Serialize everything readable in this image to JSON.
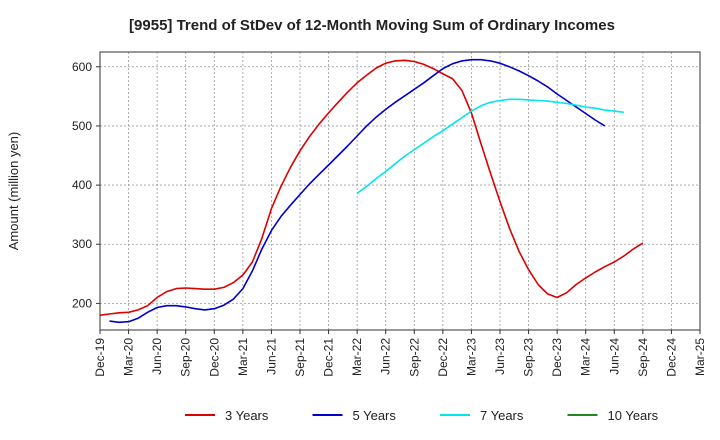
{
  "chart_data": {
    "type": "line",
    "title": "[9955]  Trend of StDev of 12-Month Moving Sum of Ordinary Incomes",
    "xlabel": "",
    "ylabel": "Amount (million yen)",
    "ylim": [
      155,
      625
    ],
    "yticks": [
      200,
      300,
      400,
      500,
      600
    ],
    "x_tick_labels": [
      "Dec-19",
      "Mar-20",
      "Jun-20",
      "Sep-20",
      "Dec-20",
      "Mar-21",
      "Jun-21",
      "Sep-21",
      "Dec-21",
      "Mar-22",
      "Jun-22",
      "Sep-22",
      "Dec-22",
      "Mar-23",
      "Jun-23",
      "Sep-23",
      "Dec-23",
      "Mar-24",
      "Jun-24",
      "Sep-24",
      "Dec-24",
      "Mar-25"
    ],
    "x_start": "Dec-19",
    "series": [
      {
        "name": "3 Years",
        "color": "#dd0000",
        "start_index": 0,
        "values": [
          180,
          182,
          184,
          185,
          189,
          196,
          210,
          220,
          225,
          226,
          225,
          224,
          224,
          227,
          235,
          248,
          270,
          310,
          360,
          398,
          430,
          458,
          482,
          503,
          522,
          540,
          557,
          573,
          586,
          598,
          606,
          610,
          611,
          609,
          604,
          597,
          588,
          580,
          560,
          522,
          470,
          420,
          372,
          327,
          288,
          257,
          232,
          216,
          210,
          218,
          232,
          243,
          253,
          262,
          270,
          280,
          292,
          302
        ]
      },
      {
        "name": "5 Years",
        "color": "#0000cc",
        "start_index": 1,
        "values": [
          170,
          168,
          169,
          175,
          185,
          193,
          196,
          196,
          194,
          191,
          189,
          191,
          197,
          207,
          225,
          255,
          292,
          323,
          347,
          366,
          384,
          402,
          418,
          434,
          450,
          466,
          483,
          500,
          515,
          528,
          540,
          551,
          562,
          573,
          585,
          597,
          605,
          610,
          612,
          612,
          610,
          606,
          600,
          593,
          585,
          576,
          566,
          554,
          543,
          532,
          521,
          510,
          500
        ]
      },
      {
        "name": "7 Years",
        "color": "#00e5ee",
        "start_index": 27,
        "values": [
          386,
          398,
          411,
          423,
          436,
          449,
          460,
          471,
          482,
          492,
          503,
          514,
          525,
          534,
          540,
          543,
          545,
          545,
          544,
          543,
          542,
          540,
          538,
          535,
          532,
          530,
          527,
          525,
          523
        ]
      },
      {
        "name": "10 Years",
        "color": "#228822",
        "start_index": 0,
        "values": []
      }
    ],
    "legend_position": "bottom-center",
    "grid": true
  }
}
